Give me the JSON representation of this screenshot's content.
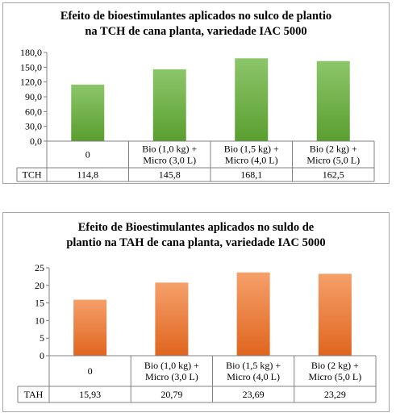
{
  "chart_data": [
    {
      "type": "bar",
      "title_lines": [
        "Efeito de bioestimulantes  aplicados no sulco de plantio",
        "na TCH de cana planta,  variedade IAC 5000"
      ],
      "categories": [
        [
          "0"
        ],
        [
          "Bio (1,0 kg) +",
          "Micro (3,0 L)"
        ],
        [
          "Bio (1,5 kg) +",
          "Micro (4,0 L)"
        ],
        [
          "Bio (2 kg) +",
          "Micro (5,0 L)"
        ]
      ],
      "series": [
        {
          "name": "TCH",
          "values": [
            114.8,
            145.8,
            168.1,
            162.5
          ]
        }
      ],
      "value_labels": [
        "114,8",
        "145,8",
        "168,1",
        "162,5"
      ],
      "yticks": [
        "0,0",
        "30,0",
        "60,0",
        "90,0",
        "120,0",
        "150,0",
        "180,0"
      ],
      "ylim": [
        0,
        180
      ],
      "grid": false,
      "data_table": true,
      "bar_color_top": "#8cc66a",
      "bar_color_bottom": "#5a9e2f"
    },
    {
      "type": "bar",
      "title_lines": [
        "Efeito de Bioestimulantes aplicados no suldo de",
        "plantio  na TAH de cana planta,  variedade IAC 5000"
      ],
      "categories": [
        [
          "0"
        ],
        [
          "Bio (1,0 kg) +",
          "Micro (3,0 L)"
        ],
        [
          "Bio (1,5 kg) +",
          "Micro (4,0 L)"
        ],
        [
          "Bio (2 kg) +",
          "Micro (5,0 L)"
        ]
      ],
      "series": [
        {
          "name": "TAH",
          "values": [
            15.93,
            20.79,
            23.69,
            23.29
          ]
        }
      ],
      "value_labels": [
        "15,93",
        "20,79",
        "23,69",
        "23,29"
      ],
      "yticks": [
        "0",
        "5",
        "10",
        "15",
        "20",
        "25"
      ],
      "ylim": [
        0,
        25
      ],
      "grid": false,
      "data_table": true,
      "bar_color_top": "#f5a06a",
      "bar_color_bottom": "#e0651f"
    }
  ]
}
